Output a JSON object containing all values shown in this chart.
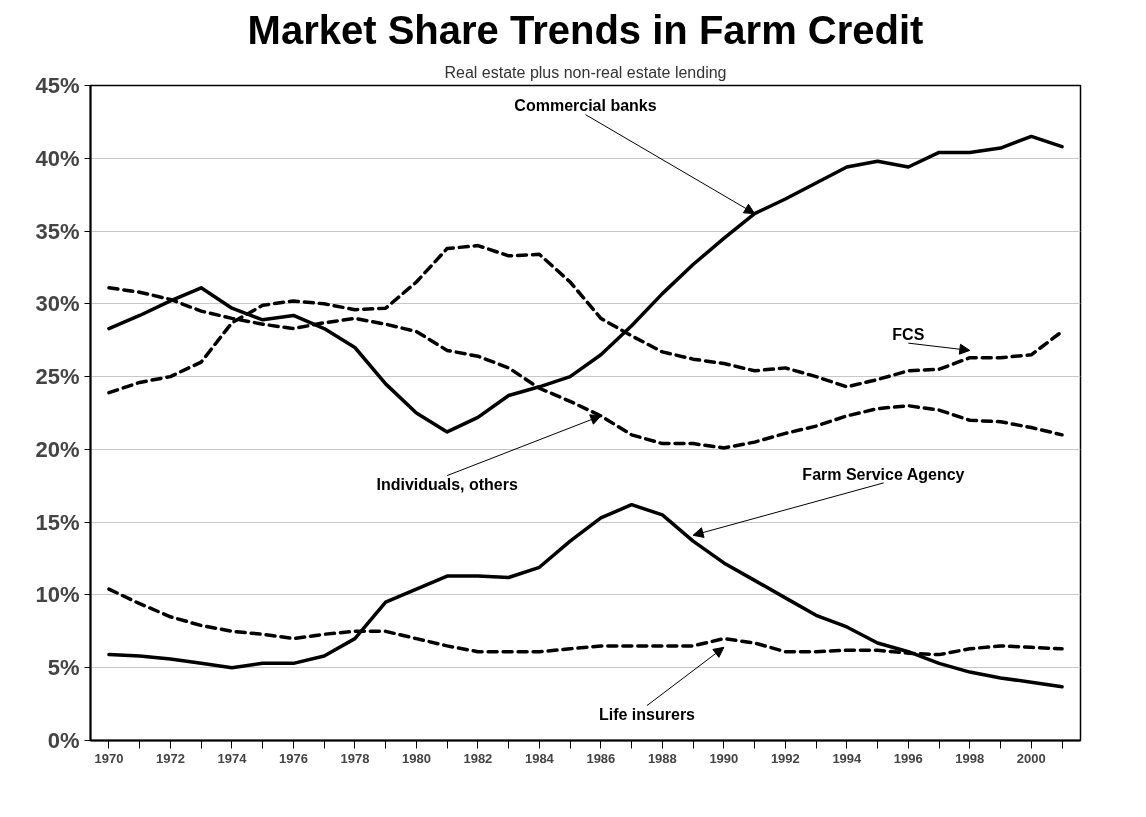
{
  "chart_data": {
    "type": "line",
    "title": "Market Share Trends in Farm Credit",
    "subtitle": "Real estate plus non-real estate lending",
    "categories": [
      "1970",
      null,
      "1972",
      null,
      "1974",
      null,
      "1976",
      null,
      "1978",
      null,
      "1980",
      null,
      "1982",
      null,
      "1984",
      null,
      "1986",
      null,
      "1988",
      null,
      "1990",
      null,
      "1992",
      null,
      "1994",
      null,
      "1996",
      null,
      "1998",
      null,
      "2000",
      null
    ],
    "ylim": [
      0,
      45
    ],
    "yticks": [
      {
        "value": 0,
        "label": "0%"
      },
      {
        "value": 5,
        "label": "5%"
      },
      {
        "value": 10,
        "label": "10%"
      },
      {
        "value": 15,
        "label": "15%"
      },
      {
        "value": 20,
        "label": "20%"
      },
      {
        "value": 25,
        "label": "25%"
      },
      {
        "value": 30,
        "label": "30%"
      },
      {
        "value": 35,
        "label": "35%"
      },
      {
        "value": 40,
        "label": "40%"
      },
      {
        "value": 45,
        "label": "45%"
      }
    ],
    "grid": "y",
    "marker": "none",
    "series": [
      {
        "name": "Commercial banks",
        "color": "#000000",
        "line_style": "solid",
        "values": [
          28.3,
          29.2,
          30.2,
          31.1,
          29.7,
          28.9,
          29.2,
          28.3,
          27.0,
          24.5,
          22.5,
          21.2,
          22.2,
          23.7,
          24.3,
          25.0,
          26.5,
          28.5,
          30.7,
          32.7,
          34.5,
          36.2,
          37.2,
          38.3,
          39.4,
          39.8,
          39.4,
          40.4,
          40.4,
          40.7,
          41.5,
          40.8
        ]
      },
      {
        "name": "FCS",
        "color": "#000000",
        "line_style": "dashed",
        "values": [
          23.9,
          24.6,
          25.0,
          26.0,
          28.7,
          29.9,
          30.2,
          30.0,
          29.6,
          29.7,
          31.5,
          33.8,
          34.0,
          33.3,
          33.4,
          31.5,
          29.0,
          27.8,
          26.7,
          26.2,
          25.9,
          25.4,
          25.6,
          25.0,
          24.3,
          24.8,
          25.4,
          25.5,
          26.3,
          26.3,
          26.5,
          28.1
        ]
      },
      {
        "name": "Individuals, others",
        "color": "#000000",
        "line_style": "dashed",
        "values": [
          31.1,
          30.8,
          30.3,
          29.5,
          29.0,
          28.6,
          28.3,
          28.7,
          29.0,
          28.6,
          28.1,
          26.8,
          26.4,
          25.6,
          24.2,
          23.3,
          22.3,
          21.0,
          20.4,
          20.4,
          20.1,
          20.5,
          21.1,
          21.6,
          22.3,
          22.8,
          23.0,
          22.7,
          22.0,
          21.9,
          21.5,
          21.0
        ]
      },
      {
        "name": "Farm Service Agency",
        "color": "#000000",
        "line_style": "solid",
        "values": [
          5.9,
          5.8,
          5.6,
          5.3,
          5.0,
          5.3,
          5.3,
          5.8,
          7.0,
          9.5,
          10.4,
          11.3,
          11.3,
          11.2,
          11.9,
          13.7,
          15.3,
          16.2,
          15.5,
          13.7,
          12.2,
          11.0,
          9.8,
          8.6,
          7.8,
          6.7,
          6.1,
          5.3,
          4.7,
          4.3,
          4.0,
          3.7
        ]
      },
      {
        "name": "Life insurers",
        "color": "#000000",
        "line_style": "dashed",
        "values": [
          10.4,
          9.4,
          8.5,
          7.9,
          7.5,
          7.3,
          7.0,
          7.3,
          7.5,
          7.5,
          7.0,
          6.5,
          6.1,
          6.1,
          6.1,
          6.3,
          6.5,
          6.5,
          6.5,
          6.5,
          7.0,
          6.7,
          6.1,
          6.1,
          6.2,
          6.2,
          6.0,
          5.9,
          6.3,
          6.5,
          6.4,
          6.3
        ]
      }
    ]
  }
}
